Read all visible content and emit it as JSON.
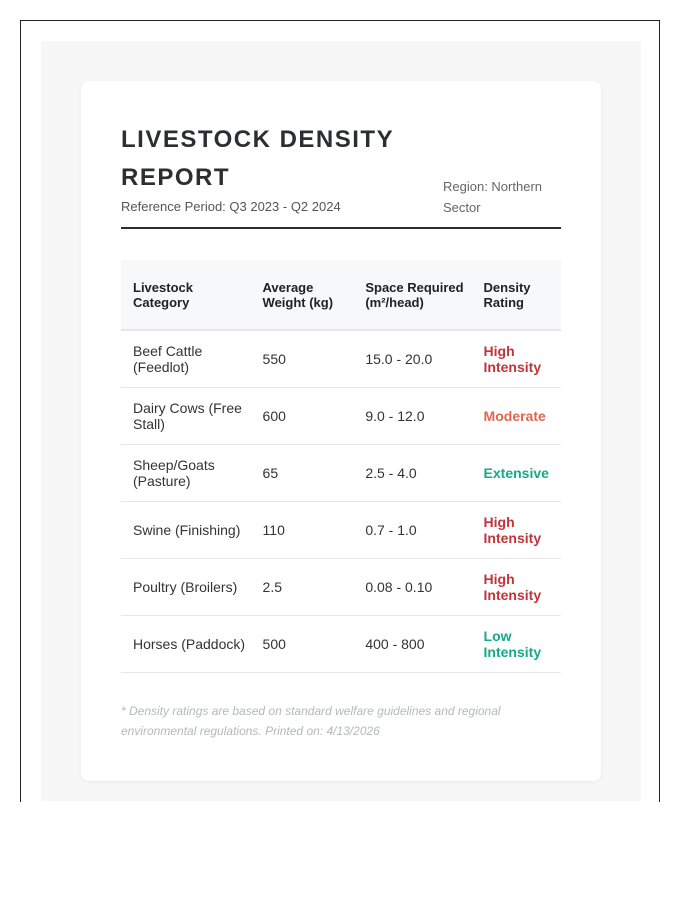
{
  "header": {
    "title": "LIVESTOCK DENSITY REPORT",
    "period": "Reference Period: Q3 2023 - Q2 2024",
    "region": "Region: Northern Sector"
  },
  "table": {
    "columns": [
      "Livestock Category",
      "Average Weight (kg)",
      "Space Required (m²/head)",
      "Density Rating"
    ],
    "rows": [
      [
        "Beef Cattle (Feedlot)",
        "550",
        "15.0 - 20.0",
        "High Intensity"
      ],
      [
        "Dairy Cows (Free Stall)",
        "600",
        "9.0 - 12.0",
        "Moderate"
      ],
      [
        "Sheep/Goats (Pasture)",
        "65",
        "2.5 - 4.0",
        "Extensive"
      ],
      [
        "Swine (Finishing)",
        "110",
        "0.7 - 1.0",
        "High Intensity"
      ],
      [
        "Poultry (Broilers)",
        "2.5",
        "0.08 - 0.10",
        "High Intensity"
      ],
      [
        "Horses (Paddock)",
        "500",
        "400 - 800",
        "Low Intensity"
      ]
    ]
  },
  "footer": {
    "note": "* Density ratings are based on standard welfare guidelines and regional environmental regulations. Printed on: 4/13/2026"
  }
}
